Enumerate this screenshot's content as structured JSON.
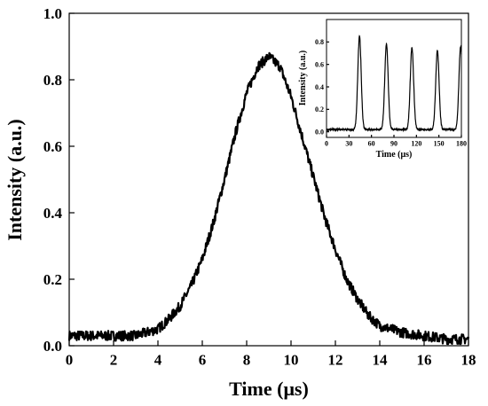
{
  "chart_data": [
    {
      "type": "line",
      "role": "main",
      "xlabel": "Time (μs)",
      "ylabel": "Intensity (a.u.)",
      "xlim": [
        0,
        18
      ],
      "ylim": [
        0.0,
        1.0
      ],
      "xticks": [
        0,
        2,
        4,
        6,
        8,
        10,
        12,
        14,
        16,
        18
      ],
      "xtick_labels": [
        "0",
        "2",
        "4",
        "6",
        "8",
        "10",
        "12",
        "14",
        "16",
        "18"
      ],
      "yticks": [
        0.0,
        0.2,
        0.4,
        0.6,
        0.8,
        1.0
      ],
      "ytick_labels": [
        "0.0",
        "0.2",
        "0.4",
        "0.6",
        "0.8",
        "1.0"
      ],
      "grid": false,
      "color": "#000000",
      "series": [
        {
          "x": [
            0,
            1,
            2,
            3,
            3.5,
            4,
            4.5,
            5,
            5.5,
            6,
            6.5,
            7,
            7.5,
            8,
            8.5,
            9,
            9.5,
            10,
            10.5,
            11,
            11.5,
            12,
            12.5,
            13,
            13.5,
            14,
            14.5,
            15,
            16,
            17,
            18
          ],
          "y": [
            0.03,
            0.03,
            0.03,
            0.03,
            0.04,
            0.05,
            0.08,
            0.12,
            0.18,
            0.26,
            0.37,
            0.5,
            0.64,
            0.76,
            0.84,
            0.87,
            0.84,
            0.75,
            0.63,
            0.51,
            0.39,
            0.29,
            0.2,
            0.14,
            0.09,
            0.06,
            0.05,
            0.04,
            0.03,
            0.02,
            0.02
          ]
        }
      ]
    },
    {
      "type": "line",
      "role": "inset",
      "xlabel": "Time (μs)",
      "ylabel": "Intensity (a.u.)",
      "xlim": [
        0,
        180
      ],
      "ylim": [
        -0.05,
        1.0
      ],
      "xticks": [
        0,
        30,
        60,
        90,
        120,
        150,
        180
      ],
      "xtick_labels": [
        "0",
        "30",
        "60",
        "90",
        "120",
        "150",
        "180"
      ],
      "yticks": [
        0.0,
        0.2,
        0.4,
        0.6,
        0.8
      ],
      "ytick_labels": [
        "0.0",
        "0.2",
        "0.4",
        "0.6",
        "0.8"
      ],
      "grid": false,
      "color": "#000000",
      "peaks": [
        {
          "x": 44,
          "y": 0.85
        },
        {
          "x": 80,
          "y": 0.78
        },
        {
          "x": 114,
          "y": 0.75
        },
        {
          "x": 148,
          "y": 0.72
        },
        {
          "x": 179,
          "y": 0.76
        }
      ],
      "baseline": 0.02
    }
  ]
}
